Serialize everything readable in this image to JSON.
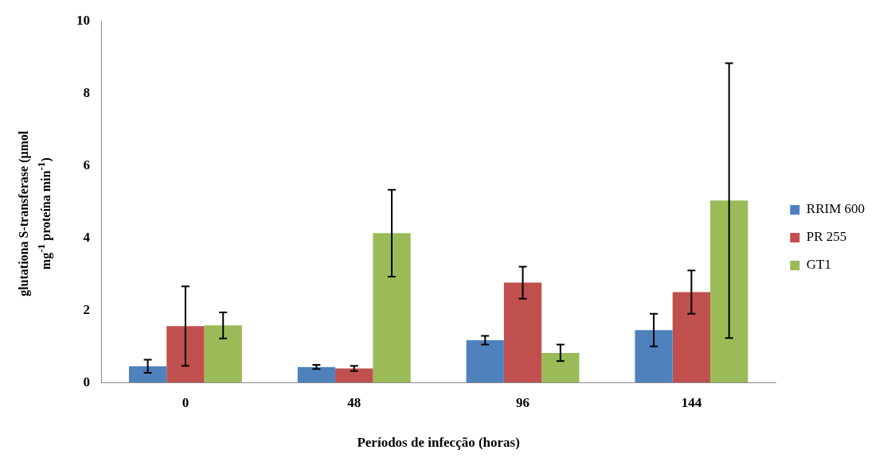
{
  "chart_data": {
    "type": "bar",
    "xlabel": "Períodos de infecção (horas)",
    "ylabel": "glutationa S-transferase (µmol mg$^{-1}$ proteína min$^{-1}$)",
    "categories": [
      "0",
      "48",
      "96",
      "144"
    ],
    "series": [
      {
        "name": "RRIM 600",
        "color": "#4f81bd",
        "values": [
          0.45,
          0.43,
          1.17,
          1.45
        ],
        "errors": [
          0.18,
          0.06,
          0.12,
          0.45
        ]
      },
      {
        "name": "PR 255",
        "color": "#c0504d",
        "values": [
          1.56,
          0.39,
          2.76,
          2.5
        ],
        "errors": [
          1.1,
          0.07,
          0.44,
          0.6
        ]
      },
      {
        "name": "GT1",
        "color": "#9bbb59",
        "values": [
          1.58,
          4.13,
          0.82,
          5.03
        ],
        "errors": [
          0.36,
          1.2,
          0.23,
          3.8
        ]
      }
    ],
    "ylim": [
      0,
      10
    ],
    "yticks": [
      0,
      2,
      4,
      6,
      8,
      10
    ],
    "grid": false,
    "legend": "right"
  }
}
